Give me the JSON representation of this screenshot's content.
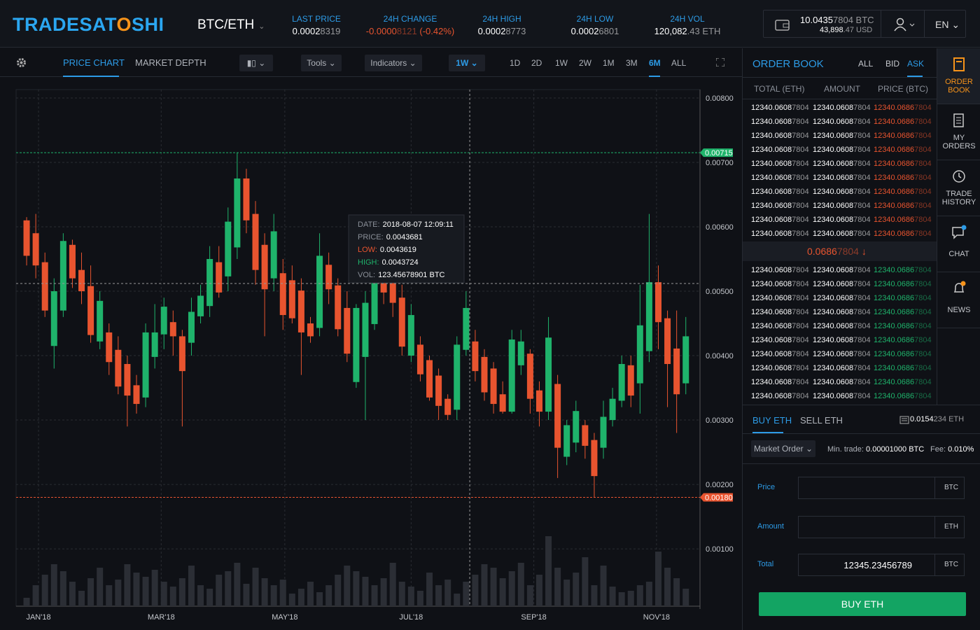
{
  "header": {
    "logo": [
      "TRADESAT",
      "O",
      "SHI"
    ],
    "pair": "BTC/ETH",
    "stats": [
      {
        "label": "LAST PRICE",
        "value": [
          "0.0002",
          "8319"
        ],
        "color": "#ffffff"
      },
      {
        "label": "24H CHANGE",
        "value": [
          "-0.0000",
          "8121",
          "(-0.42%)"
        ],
        "color": "#e8542f"
      },
      {
        "label": "24H HIGH",
        "value": [
          "0.0002",
          "8773"
        ],
        "color": "#ffffff"
      },
      {
        "label": "24H LOW",
        "value": [
          "0.0002",
          "6801"
        ],
        "color": "#ffffff"
      },
      {
        "label": "24H VOL",
        "value": [
          "120,082",
          ".43 ETH"
        ],
        "color": "#ffffff"
      }
    ],
    "wallet": {
      "btc": [
        "10.0435",
        "7804 BTC"
      ],
      "usd": [
        "43,898",
        ".47 USD"
      ]
    },
    "lang": "EN"
  },
  "toolbar": {
    "tabs": [
      "PRICE CHART",
      "MARKET DEPTH"
    ],
    "tools": "Tools",
    "indicators": "Indicators",
    "interval": "1W",
    "ranges": [
      "1D",
      "2D",
      "1W",
      "2W",
      "1M",
      "3M",
      "6M",
      "ALL"
    ],
    "active_range": 6
  },
  "chart_data": {
    "type": "candlestick",
    "up_color": "#1fb36b",
    "down_color": "#e8542f",
    "volume_color": "#2b2e35",
    "open": [
      0.0061,
      0.0059,
      0.00545,
      0.00415,
      0.0047,
      0.00572,
      0.00533,
      0.00508,
      0.00422,
      0.00436,
      0.00409,
      0.00387,
      0.00354,
      0.00335,
      0.00398,
      0.00433,
      0.00452,
      0.0043,
      0.0042,
      0.00461,
      0.00477,
      0.00545,
      0.00523,
      0.00568,
      0.00675,
      0.0062,
      0.00572,
      0.0052,
      0.00528,
      0.00517,
      0.00501,
      0.0045,
      0.00443,
      0.00541,
      0.00509,
      0.00474,
      0.00359,
      0.00398,
      0.00449,
      0.00541,
      0.0052,
      0.0049,
      0.004,
      0.00417,
      0.00393,
      0.00369,
      0.00333,
      0.00316,
      0.00409,
      0.00422,
      0.00398,
      0.0038,
      0.0034,
      0.00313,
      0.00385,
      0.00403,
      0.00346,
      0.00313,
      0.00356,
      0.00243,
      0.00265,
      0.00292,
      0.00269,
      0.00257,
      0.003,
      0.0033,
      0.00385,
      0.00357,
      0.00407,
      0.00514,
      0.00458,
      0.00411,
      0.00357
    ],
    "high": [
      0.00615,
      0.0062,
      0.0056,
      0.0052,
      0.0059,
      0.0058,
      0.0056,
      0.0054,
      0.005,
      0.0045,
      0.0043,
      0.004,
      0.0037,
      0.0045,
      0.0048,
      0.0049,
      0.0047,
      0.0044,
      0.0049,
      0.0051,
      0.0057,
      0.0057,
      0.0063,
      0.00715,
      0.0069,
      0.0064,
      0.0059,
      0.0062,
      0.0055,
      0.0054,
      0.0052,
      0.0046,
      0.0059,
      0.0056,
      0.0052,
      0.005,
      0.0048,
      0.005,
      0.0053,
      0.0056,
      0.0054,
      0.0051,
      0.0048,
      0.0043,
      0.004,
      0.0038,
      0.0034,
      0.0043,
      0.005,
      0.0044,
      0.0041,
      0.0039,
      0.0036,
      0.0044,
      0.0044,
      0.0041,
      0.0036,
      0.0046,
      0.0037,
      0.003,
      0.0033,
      0.003,
      0.0028,
      0.0033,
      0.0035,
      0.004,
      0.004,
      0.0051,
      0.0062,
      0.0054,
      0.0047,
      0.0047,
      0.0046
    ],
    "low": [
      0.0054,
      0.0052,
      0.0046,
      0.0038,
      0.0046,
      0.00505,
      0.0048,
      0.0042,
      0.0041,
      0.0037,
      0.0034,
      0.0029,
      0.0031,
      0.0032,
      0.0038,
      0.0041,
      0.004,
      0.0029,
      0.004,
      0.0045,
      0.0046,
      0.0049,
      0.005,
      0.0055,
      0.0059,
      0.0051,
      0.0043,
      0.005,
      0.0044,
      0.0045,
      0.0037,
      0.0042,
      0.0043,
      0.0048,
      0.0043,
      0.0039,
      0.0035,
      0.003,
      0.0044,
      0.0048,
      0.0046,
      0.004,
      0.0039,
      0.0036,
      0.0033,
      0.003,
      0.003,
      0.003,
      0.004,
      0.0036,
      0.0033,
      0.0031,
      0.0031,
      0.0031,
      0.0037,
      0.0031,
      0.0029,
      0.003,
      0.0021,
      0.0023,
      0.0025,
      0.0024,
      0.0018,
      0.0024,
      0.0029,
      0.0032,
      0.0032,
      0.0031,
      0.0039,
      0.0041,
      0.0032,
      0.0028,
      0.0034
    ],
    "close": [
      0.00555,
      0.0054,
      0.0047,
      0.005,
      0.00578,
      0.0052,
      0.005,
      0.00432,
      0.00485,
      0.0039,
      0.00352,
      0.00338,
      0.00325,
      0.00436,
      0.00436,
      0.00476,
      0.0043,
      0.00376,
      0.00468,
      0.00493,
      0.0055,
      0.00498,
      0.00608,
      0.00675,
      0.0061,
      0.00533,
      0.00503,
      0.00593,
      0.00463,
      0.00458,
      0.00436,
      0.0043,
      0.00555,
      0.00503,
      0.00441,
      0.00403,
      0.00474,
      0.00482,
      0.0052,
      0.00498,
      0.00482,
      0.00414,
      0.00463,
      0.00371,
      0.00335,
      0.00322,
      0.00308,
      0.00417,
      0.00474,
      0.00376,
      0.00343,
      0.00325,
      0.00313,
      0.00425,
      0.00422,
      0.00333,
      0.00313,
      0.00428,
      0.00257,
      0.00292,
      0.00314,
      0.0026,
      0.00213,
      0.00305,
      0.00333,
      0.00387,
      0.00338,
      0.00447,
      0.00514,
      0.00452,
      0.00387,
      0.0034,
      0.0043
    ],
    "volume": [
      12,
      30,
      45,
      60,
      50,
      35,
      22,
      40,
      55,
      30,
      38,
      60,
      48,
      42,
      52,
      35,
      28,
      40,
      58,
      30,
      25,
      45,
      50,
      62,
      32,
      55,
      40,
      30,
      38,
      18,
      25,
      35,
      20,
      30,
      45,
      58,
      50,
      42,
      30,
      40,
      62,
      35,
      28,
      22,
      48,
      30,
      38,
      18,
      35,
      45,
      60,
      55,
      40,
      50,
      62,
      30,
      45,
      100,
      55,
      38,
      48,
      70,
      30,
      58,
      28,
      20,
      22,
      30,
      35,
      78,
      55,
      40,
      25
    ],
    "vlim": [
      0,
      100
    ],
    "xlim": [
      -1.15,
      73.55
    ],
    "ylim": [
      0.00011,
      0.00813
    ],
    "yticks": [
      {
        "value": 0.008,
        "label": "0.00800"
      },
      {
        "value": 0.007,
        "label": "0.00700"
      },
      {
        "value": 0.006,
        "label": "0.00600"
      },
      {
        "value": 0.005,
        "label": "0.00500"
      },
      {
        "value": 0.004,
        "label": "0.00400"
      },
      {
        "value": 0.003,
        "label": "0.00300"
      },
      {
        "value": 0.002,
        "label": "0.00200"
      },
      {
        "value": 0.001,
        "label": "0.00100"
      }
    ],
    "xticks": [
      {
        "value": 1.3,
        "label": "JAN'18"
      },
      {
        "value": 14.7,
        "label": "MAR'18"
      },
      {
        "value": 28.2,
        "label": "MAY'18"
      },
      {
        "value": 42,
        "label": "JUL'18"
      },
      {
        "value": 55.4,
        "label": "SEP'18"
      },
      {
        "value": 68.8,
        "label": "NOV'18"
      }
    ],
    "high_marker": {
      "value": 0.00715,
      "label": "0.00715"
    },
    "low_marker": {
      "value": 0.0018,
      "label": "0.00180"
    },
    "crosshair": {
      "x": 48.4,
      "y": 0.00512
    },
    "grid": true,
    "tooltip": [
      [
        "DATE:",
        "2018-08-07 12:09:11"
      ],
      [
        "PRICE:",
        "0.0043681"
      ],
      [
        "LOW:",
        "0.0043619"
      ],
      [
        "HIGH:",
        "0.0043724"
      ],
      [
        "VOL:",
        "123.45678901 BTC"
      ]
    ]
  },
  "order_book": {
    "title": "ORDER BOOK",
    "filters": [
      "ALL",
      "BID",
      "ASK"
    ],
    "columns": [
      "TOTAL (ETH)",
      "AMOUNT",
      "PRICE (BTC)"
    ],
    "asks": [
      [
        [
          "12340.0608",
          "7804"
        ],
        [
          "12340.0608",
          "7804"
        ],
        [
          "12340.0686",
          "7804"
        ]
      ],
      [
        [
          "12340.0608",
          "7804"
        ],
        [
          "12340.0608",
          "7804"
        ],
        [
          "12340.0686",
          "7804"
        ]
      ],
      [
        [
          "12340.0608",
          "7804"
        ],
        [
          "12340.0608",
          "7804"
        ],
        [
          "12340.0686",
          "7804"
        ]
      ],
      [
        [
          "12340.0608",
          "7804"
        ],
        [
          "12340.0608",
          "7804"
        ],
        [
          "12340.0686",
          "7804"
        ]
      ],
      [
        [
          "12340.0608",
          "7804"
        ],
        [
          "12340.0608",
          "7804"
        ],
        [
          "12340.0686",
          "7804"
        ]
      ],
      [
        [
          "12340.0608",
          "7804"
        ],
        [
          "12340.0608",
          "7804"
        ],
        [
          "12340.0686",
          "7804"
        ]
      ],
      [
        [
          "12340.0608",
          "7804"
        ],
        [
          "12340.0608",
          "7804"
        ],
        [
          "12340.0686",
          "7804"
        ]
      ],
      [
        [
          "12340.0608",
          "7804"
        ],
        [
          "12340.0608",
          "7804"
        ],
        [
          "12340.0686",
          "7804"
        ]
      ],
      [
        [
          "12340.0608",
          "7804"
        ],
        [
          "12340.0608",
          "7804"
        ],
        [
          "12340.0686",
          "7804"
        ]
      ],
      [
        [
          "12340.0608",
          "7804"
        ],
        [
          "12340.0608",
          "7804"
        ],
        [
          "12340.0686",
          "7804"
        ]
      ]
    ],
    "last": [
      "0.0686",
      "7804",
      "↓"
    ],
    "bids": [
      [
        [
          "12340.0608",
          "7804"
        ],
        [
          "12340.0608",
          "7804"
        ],
        [
          "12340.0686",
          "7804"
        ]
      ],
      [
        [
          "12340.0608",
          "7804"
        ],
        [
          "12340.0608",
          "7804"
        ],
        [
          "12340.0686",
          "7804"
        ]
      ],
      [
        [
          "12340.0608",
          "7804"
        ],
        [
          "12340.0608",
          "7804"
        ],
        [
          "12340.0686",
          "7804"
        ]
      ],
      [
        [
          "12340.0608",
          "7804"
        ],
        [
          "12340.0608",
          "7804"
        ],
        [
          "12340.0686",
          "7804"
        ]
      ],
      [
        [
          "12340.0608",
          "7804"
        ],
        [
          "12340.0608",
          "7804"
        ],
        [
          "12340.0686",
          "7804"
        ]
      ],
      [
        [
          "12340.0608",
          "7804"
        ],
        [
          "12340.0608",
          "7804"
        ],
        [
          "12340.0686",
          "7804"
        ]
      ],
      [
        [
          "12340.0608",
          "7804"
        ],
        [
          "12340.0608",
          "7804"
        ],
        [
          "12340.0686",
          "7804"
        ]
      ],
      [
        [
          "12340.0608",
          "7804"
        ],
        [
          "12340.0608",
          "7804"
        ],
        [
          "12340.0686",
          "7804"
        ]
      ],
      [
        [
          "12340.0608",
          "7804"
        ],
        [
          "12340.0608",
          "7804"
        ],
        [
          "12340.0686",
          "7804"
        ]
      ],
      [
        [
          "12340.0608",
          "7804"
        ],
        [
          "12340.0608",
          "7804"
        ],
        [
          "12340.0686",
          "7804"
        ]
      ]
    ]
  },
  "trade": {
    "tabs": [
      "BUY ETH",
      "SELL ETH"
    ],
    "balance": [
      "0.0154",
      "234 ETH"
    ],
    "order_type": "Market Order",
    "min_label": "Min. trade:",
    "min_value": "0.00001000 BTC",
    "fee_label": "Fee:",
    "fee_value": "0.010%",
    "fields": [
      {
        "label": "Price",
        "value": "",
        "unit": "BTC"
      },
      {
        "label": "Amount",
        "value": "",
        "unit": "ETH"
      },
      {
        "label": "Total",
        "value": "12345.23456789",
        "unit": "BTC"
      }
    ],
    "button": "BUY ETH"
  },
  "sidebar": [
    [
      "ORDER",
      "BOOK"
    ],
    [
      "MY",
      "ORDERS"
    ],
    [
      "TRADE",
      "HISTORY"
    ],
    [
      "CHAT"
    ],
    [
      "NEWS"
    ]
  ]
}
